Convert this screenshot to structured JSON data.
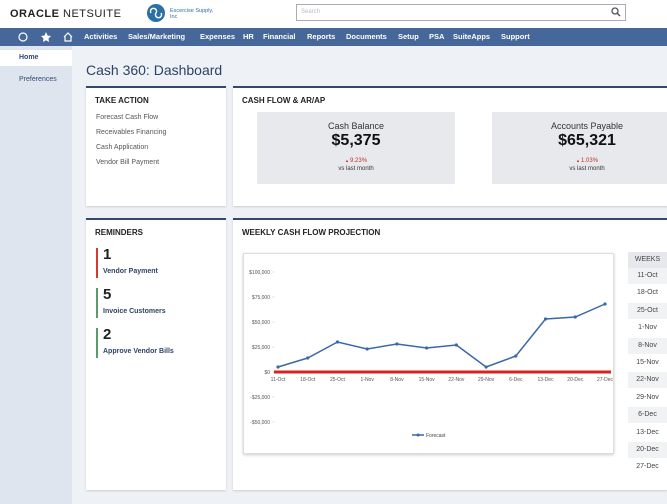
{
  "header": {
    "brand": "ORACLE",
    "product": "NETSUITE",
    "company": "Excercise Supply, Inc",
    "search_placeholder": "Search"
  },
  "nav": [
    "Activities",
    "Sales/Marketing",
    "Expenses",
    "HR",
    "Financial",
    "Reports",
    "Documents",
    "Setup",
    "PSA",
    "SuiteApps",
    "Support"
  ],
  "sidebar": [
    "Home",
    "Preferences"
  ],
  "page_title": "Cash 360: Dashboard",
  "take_action": {
    "title": "TAKE ACTION",
    "items": [
      "Forecast Cash Flow",
      "Receivables Financing",
      "Cash Application",
      "Vendor Bill Payment"
    ]
  },
  "cash_flow": {
    "title": "CASH FLOW & AR/AP",
    "cards": [
      {
        "label": "Cash Balance",
        "value": "$5,375",
        "change": "9.23%",
        "note": "vs last month"
      },
      {
        "label": "Accounts Payable",
        "value": "$65,321",
        "change": "1.03%",
        "note": "vs last month"
      }
    ]
  },
  "reminders": {
    "title": "REMINDERS",
    "items": [
      {
        "count": 1,
        "label": "Vendor Payment",
        "color": "#d23b32"
      },
      {
        "count": 5,
        "label": "Invoice Customers",
        "color": "#5c9a6c"
      },
      {
        "count": 2,
        "label": "Approve Vendor Bills",
        "color": "#5c9a6c"
      }
    ]
  },
  "weeks": {
    "title": "WEEKS"
  },
  "chart_data": {
    "type": "line",
    "title": "WEEKLY CASH FLOW PROJECTION",
    "categories": [
      "11-Oct",
      "18-Oct",
      "25-Oct",
      "1-Nov",
      "8-Nov",
      "15-Nov",
      "22-Nov",
      "29-Nov",
      "6-Dec",
      "13-Dec",
      "20-Dec",
      "27-Dec"
    ],
    "series": [
      {
        "name": "Forecast",
        "color": "#3b68a8",
        "values": [
          5000,
          14000,
          30000,
          23000,
          28000,
          24000,
          27000,
          5000,
          16000,
          53000,
          55000,
          68000
        ]
      }
    ],
    "ylim": [
      -60000,
      110000
    ],
    "yticks": [
      {
        "value": 100000,
        "label": "$100,000"
      },
      {
        "value": 75000,
        "label": "$75,000"
      },
      {
        "value": 50000,
        "label": "$50,000"
      },
      {
        "value": 25000,
        "label": "$25,000"
      },
      {
        "value": 0,
        "label": "$0"
      },
      {
        "value": -25000,
        "label": "-$25,000"
      },
      {
        "value": -50000,
        "label": "-$50,000"
      }
    ],
    "zero_line_color": "#d9241c"
  }
}
